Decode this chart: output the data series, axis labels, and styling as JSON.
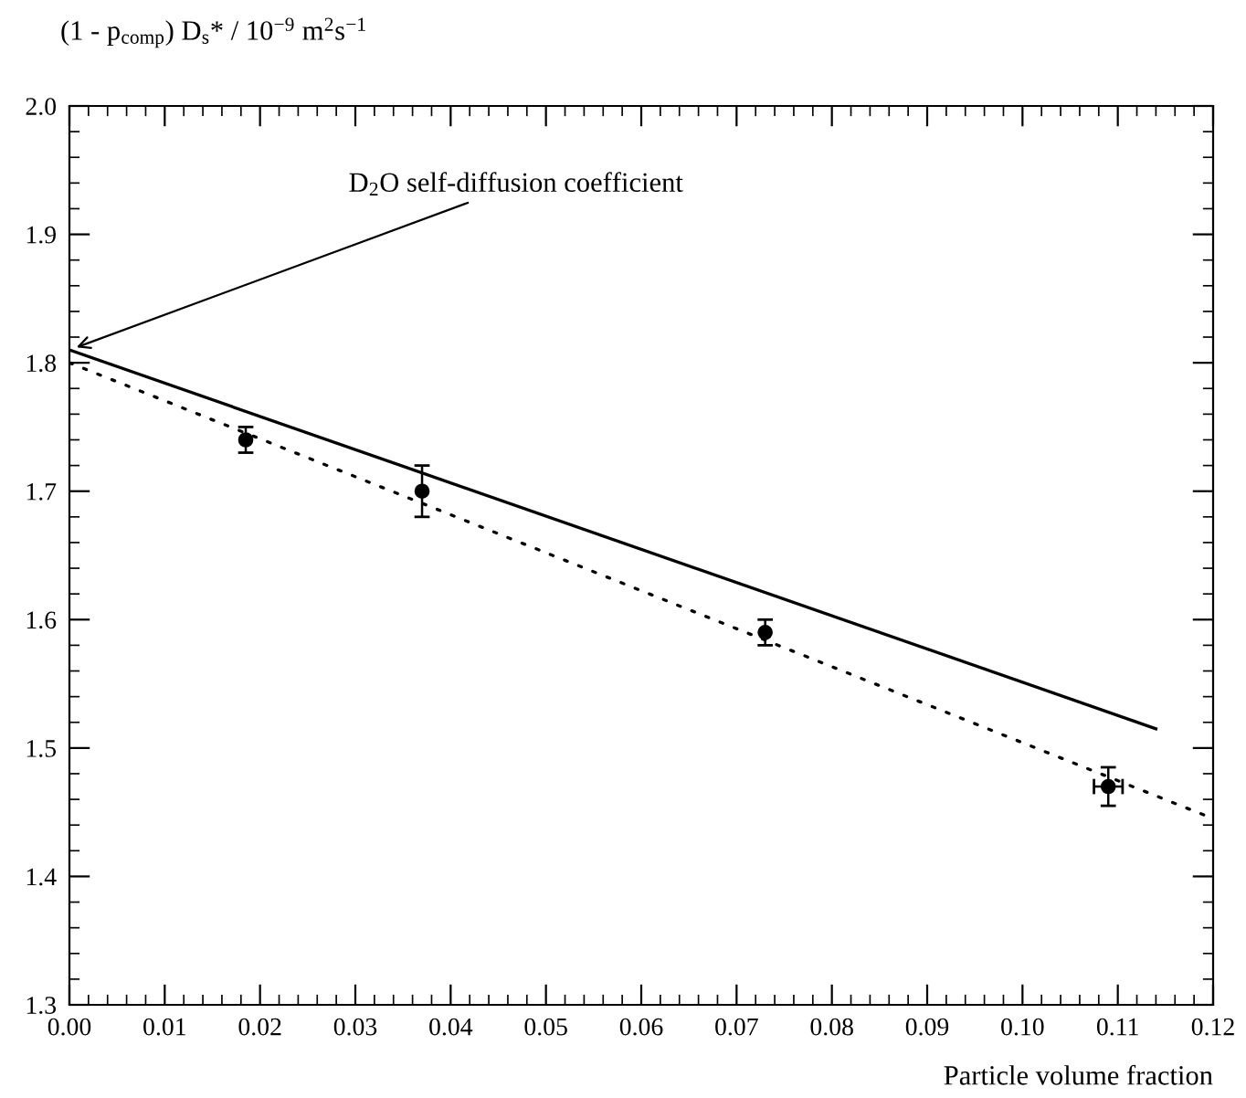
{
  "chart_data": {
    "type": "scatter",
    "xlabel": "Particle volume fraction",
    "ylabel": "(1 - p$_{comp}$) D$_{s}$* / 10$^{−9}$ m$^{2}$s$^{−1}$",
    "series": [
      {
        "type": "line",
        "color": "#000000",
        "line_style": "solid",
        "marker": "none",
        "x": [
          0,
          0.114
        ],
        "values": [
          1.81,
          1.515
        ]
      },
      {
        "type": "line",
        "color": "#000000",
        "line_style": "dotted",
        "marker": "none",
        "x": [
          0,
          0.12
        ],
        "values": [
          1.8,
          1.445
        ]
      },
      {
        "color": "#000000",
        "marker": "circle",
        "x": [
          0.0185,
          0.037,
          0.073,
          0.109
        ],
        "values": [
          1.74,
          1.7,
          1.59,
          1.47
        ],
        "errors": [
          0.01,
          0.02,
          0.01,
          0.015
        ],
        "xerrors": [
          null,
          null,
          null,
          0.0015
        ]
      }
    ],
    "annotations": [
      {
        "text": "D$_{2}$O self-diffusion coefficient",
        "x": 0,
        "y": 1.81
      }
    ],
    "xlim": [
      0,
      0.12
    ],
    "ylim": [
      1.3,
      2.0
    ],
    "xticks": [
      {
        "value": 0,
        "label": "0.00"
      },
      {
        "value": 0.01,
        "label": "0.01"
      },
      {
        "value": 0.02,
        "label": "0.02"
      },
      {
        "value": 0.03,
        "label": "0.03"
      },
      {
        "value": 0.04,
        "label": "0.04"
      },
      {
        "value": 0.05,
        "label": "0.05"
      },
      {
        "value": 0.06,
        "label": "0.06"
      },
      {
        "value": 0.07,
        "label": "0.07"
      },
      {
        "value": 0.08,
        "label": "0.08"
      },
      {
        "value": 0.09,
        "label": "0.09"
      },
      {
        "value": 0.1,
        "label": "0.10"
      },
      {
        "value": 0.11,
        "label": "0.11"
      },
      {
        "value": 0.12,
        "label": "0.12"
      }
    ],
    "yticks": [
      {
        "value": 1.3,
        "label": "1.3"
      },
      {
        "value": 1.4,
        "label": "1.4"
      },
      {
        "value": 1.5,
        "label": "1.5"
      },
      {
        "value": 1.6,
        "label": "1.6"
      },
      {
        "value": 1.7,
        "label": "1.7"
      },
      {
        "value": 1.8,
        "label": "1.8"
      },
      {
        "value": 1.9,
        "label": "1.9"
      },
      {
        "value": 2.0,
        "label": "2.0"
      }
    ],
    "grid": false,
    "legend": false
  }
}
